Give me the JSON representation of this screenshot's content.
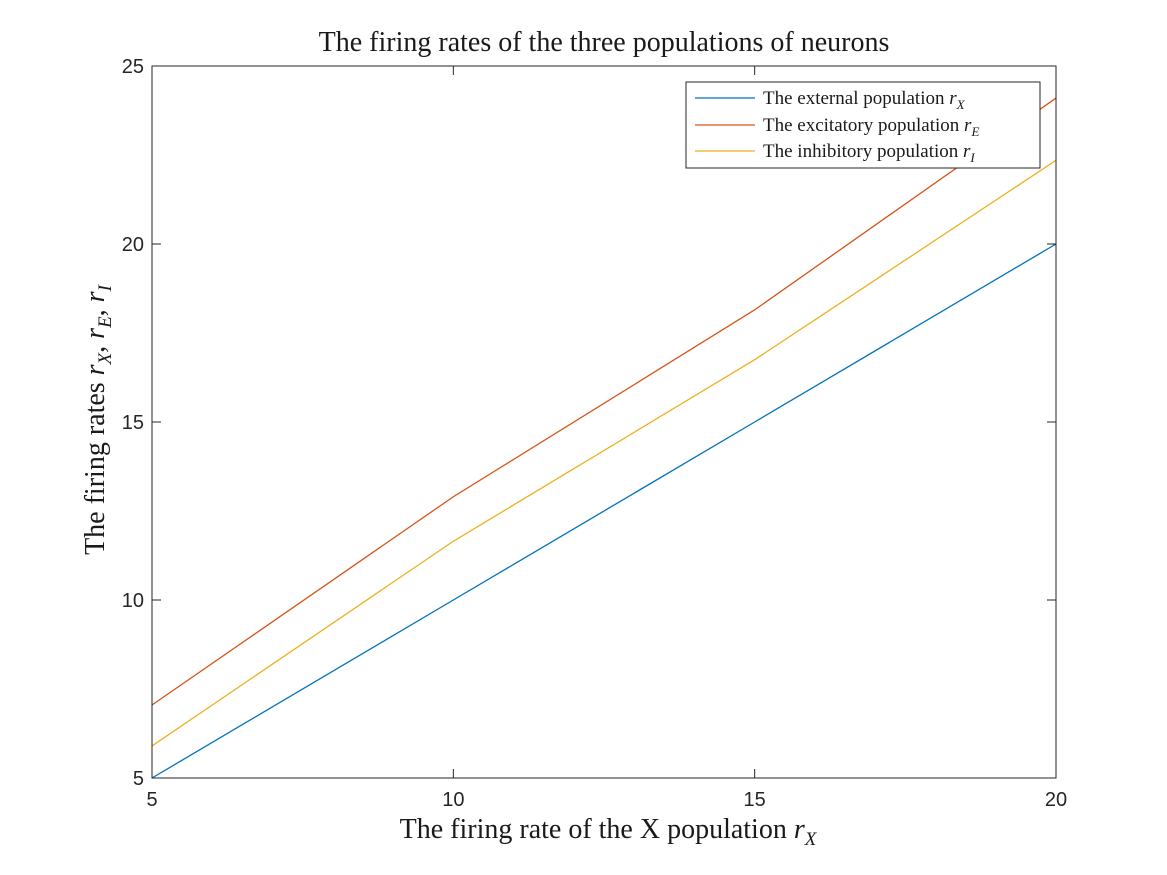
{
  "chart_data": {
    "type": "line",
    "title": "The firing rates of the three populations of neurons",
    "xlabel": "The firing rate of the X population",
    "xlabel_symbol": "r",
    "xlabel_sub": "X",
    "ylabel": "The firing rates",
    "ylabel_symbols": [
      {
        "sym": "r",
        "sub": "X"
      },
      {
        "sym": "r",
        "sub": "E"
      },
      {
        "sym": "r",
        "sub": "I"
      }
    ],
    "xlim": [
      5,
      20
    ],
    "ylim": [
      5,
      25
    ],
    "xticks": [
      5,
      10,
      15,
      20
    ],
    "yticks": [
      5,
      10,
      15,
      20,
      25
    ],
    "grid": false,
    "legend_position": "top-right",
    "x": [
      5,
      10,
      15,
      20
    ],
    "series": [
      {
        "name": "The external population",
        "symbol": "r",
        "sub": "X",
        "color": "#0072BD",
        "values": [
          5,
          10,
          15,
          20
        ]
      },
      {
        "name": "The excitatory population",
        "symbol": "r",
        "sub": "E",
        "color": "#D95319",
        "values": [
          7.05,
          12.9,
          18.15,
          24.1
        ]
      },
      {
        "name": "The inhibitory population",
        "symbol": "r",
        "sub": "I",
        "color": "#EDB120",
        "values": [
          5.9,
          11.65,
          16.75,
          22.35
        ]
      }
    ]
  }
}
